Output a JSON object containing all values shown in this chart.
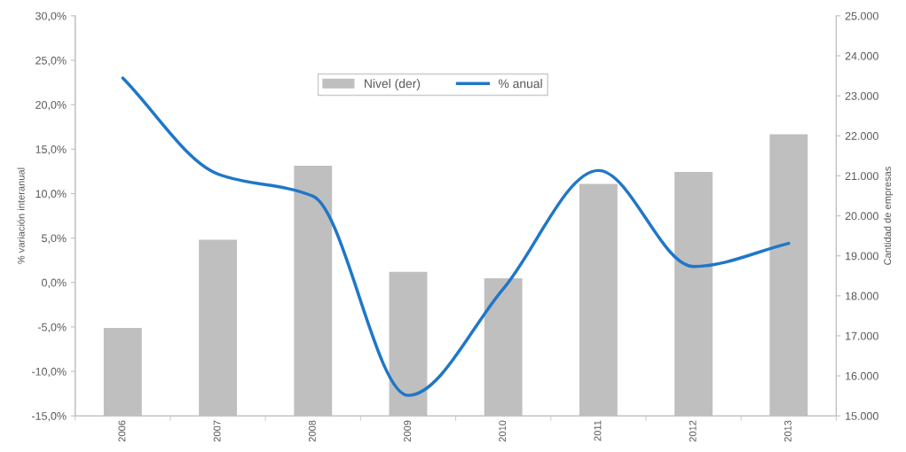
{
  "chart_data": {
    "type": "bar",
    "categories": [
      "2006",
      "2007",
      "2008",
      "2009",
      "2010",
      "2011",
      "2012",
      "2013"
    ],
    "series": [
      {
        "name": "Nivel (der)",
        "axis": "y2",
        "color": "#bfbfbf",
        "values": [
          17200,
          19400,
          21250,
          18600,
          18440,
          20800,
          21100,
          22040
        ]
      },
      {
        "name": "% anual",
        "type": "line",
        "axis": "y",
        "color": "#1f77c8",
        "values": [
          23.0,
          12.2,
          9.7,
          -12.7,
          -0.7,
          12.6,
          1.8,
          4.4
        ]
      }
    ],
    "ylabel": "% variación interanual",
    "y2label": "Cantidad de empresas",
    "ylim": [
      -15,
      30
    ],
    "yticks": [
      {
        "value": -15,
        "label": "-15,0%"
      },
      {
        "value": -10,
        "label": "-10,0%"
      },
      {
        "value": -5,
        "label": "-5,0%"
      },
      {
        "value": 0,
        "label": "0,0%"
      },
      {
        "value": 5,
        "label": "5,0%"
      },
      {
        "value": 10,
        "label": "10,0%"
      },
      {
        "value": 15,
        "label": "15,0%"
      },
      {
        "value": 20,
        "label": "20,0%"
      },
      {
        "value": 25,
        "label": "25,0%"
      },
      {
        "value": 30,
        "label": "30,0%"
      }
    ],
    "y2lim": [
      15000,
      25000
    ],
    "y2ticks": [
      {
        "value": 15000,
        "label": "15.000"
      },
      {
        "value": 16000,
        "label": "16.000"
      },
      {
        "value": 17000,
        "label": "17.000"
      },
      {
        "value": 18000,
        "label": "18.000"
      },
      {
        "value": 19000,
        "label": "19.000"
      },
      {
        "value": 20000,
        "label": "20.000"
      },
      {
        "value": 21000,
        "label": "21.000"
      },
      {
        "value": 22000,
        "label": "22.000"
      },
      {
        "value": 23000,
        "label": "23.000"
      },
      {
        "value": 24000,
        "label": "24.000"
      },
      {
        "value": 25000,
        "label": "25.000"
      }
    ],
    "legend": "top",
    "grid": false,
    "marker": "none",
    "line_style": "solid"
  }
}
